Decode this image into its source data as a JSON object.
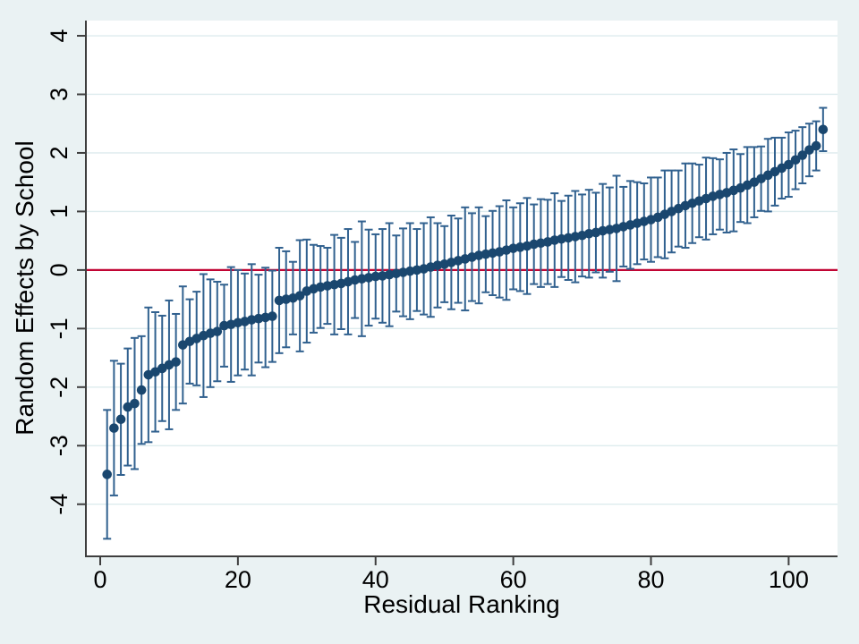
{
  "colors": {
    "background": "#eaf2f3",
    "plot_background": "#ffffff",
    "gridline": "#ddebee",
    "axis": "#3e3e3e",
    "tick_text": "#000000",
    "marker": "#1a476f",
    "error_bar": "#31618f",
    "zero_line": "#c10534"
  },
  "chart_data": {
    "type": "scatter",
    "subtype": "caterpillar-plot-with-error-bars",
    "title": "",
    "xlabel": "Residual Ranking",
    "ylabel": "Random Effects by School",
    "x_ticks": [
      0,
      20,
      40,
      60,
      80,
      100
    ],
    "y_ticks": [
      -4,
      -3,
      -2,
      -1,
      0,
      1,
      2,
      3,
      4
    ],
    "xlim": [
      -2.08,
      107.1
    ],
    "ylim": [
      -4.89,
      4.26
    ],
    "grid": "horizontal",
    "legend": "none",
    "ref_line_y": 0,
    "n_points": 105,
    "point_format": [
      "rank",
      "estimate",
      "ci_halfwidth"
    ],
    "points": [
      [
        1,
        -3.49,
        1.1
      ],
      [
        2,
        -2.7,
        1.15
      ],
      [
        3,
        -2.55,
        0.95
      ],
      [
        4,
        -2.34,
        1.0
      ],
      [
        5,
        -2.28,
        1.12
      ],
      [
        6,
        -2.05,
        0.92
      ],
      [
        7,
        -1.79,
        1.15
      ],
      [
        8,
        -1.74,
        1.02
      ],
      [
        9,
        -1.68,
        0.9
      ],
      [
        10,
        -1.62,
        1.1
      ],
      [
        11,
        -1.57,
        0.82
      ],
      [
        12,
        -1.28,
        1.0
      ],
      [
        13,
        -1.22,
        0.72
      ],
      [
        14,
        -1.17,
        0.8
      ],
      [
        15,
        -1.12,
        1.05
      ],
      [
        16,
        -1.08,
        0.92
      ],
      [
        17,
        -1.05,
        0.85
      ],
      [
        18,
        -0.95,
        0.7
      ],
      [
        19,
        -0.93,
        0.98
      ],
      [
        20,
        -0.9,
        0.9
      ],
      [
        21,
        -0.88,
        0.82
      ],
      [
        22,
        -0.85,
        0.95
      ],
      [
        23,
        -0.83,
        0.75
      ],
      [
        24,
        -0.81,
        0.85
      ],
      [
        25,
        -0.79,
        0.78
      ],
      [
        26,
        -0.52,
        0.9
      ],
      [
        27,
        -0.5,
        0.82
      ],
      [
        28,
        -0.48,
        0.62
      ],
      [
        29,
        -0.44,
        0.95
      ],
      [
        30,
        -0.36,
        0.88
      ],
      [
        31,
        -0.32,
        0.75
      ],
      [
        32,
        -0.29,
        0.7
      ],
      [
        33,
        -0.27,
        0.65
      ],
      [
        34,
        -0.25,
        0.85
      ],
      [
        35,
        -0.23,
        0.78
      ],
      [
        36,
        -0.2,
        0.9
      ],
      [
        37,
        -0.17,
        0.65
      ],
      [
        38,
        -0.15,
        0.98
      ],
      [
        39,
        -0.13,
        0.82
      ],
      [
        40,
        -0.11,
        0.72
      ],
      [
        41,
        -0.1,
        0.8
      ],
      [
        42,
        -0.08,
        0.88
      ],
      [
        43,
        -0.06,
        0.65
      ],
      [
        44,
        -0.04,
        0.75
      ],
      [
        45,
        -0.02,
        0.82
      ],
      [
        46,
        0.0,
        0.7
      ],
      [
        47,
        0.02,
        0.78
      ],
      [
        48,
        0.05,
        0.85
      ],
      [
        49,
        0.08,
        0.72
      ],
      [
        50,
        0.1,
        0.65
      ],
      [
        51,
        0.13,
        0.8
      ],
      [
        52,
        0.16,
        0.72
      ],
      [
        53,
        0.19,
        0.88
      ],
      [
        54,
        0.22,
        0.75
      ],
      [
        55,
        0.25,
        0.82
      ],
      [
        56,
        0.27,
        0.65
      ],
      [
        57,
        0.29,
        0.72
      ],
      [
        58,
        0.31,
        0.78
      ],
      [
        59,
        0.34,
        0.85
      ],
      [
        60,
        0.37,
        0.7
      ],
      [
        61,
        0.39,
        0.75
      ],
      [
        62,
        0.41,
        0.82
      ],
      [
        63,
        0.44,
        0.68
      ],
      [
        64,
        0.46,
        0.75
      ],
      [
        65,
        0.48,
        0.72
      ],
      [
        66,
        0.51,
        0.8
      ],
      [
        67,
        0.53,
        0.65
      ],
      [
        68,
        0.55,
        0.72
      ],
      [
        69,
        0.57,
        0.78
      ],
      [
        70,
        0.59,
        0.7
      ],
      [
        71,
        0.62,
        0.75
      ],
      [
        72,
        0.64,
        0.68
      ],
      [
        73,
        0.67,
        0.8
      ],
      [
        74,
        0.69,
        0.72
      ],
      [
        75,
        0.71,
        0.9
      ],
      [
        76,
        0.74,
        0.68
      ],
      [
        77,
        0.77,
        0.75
      ],
      [
        78,
        0.8,
        0.7
      ],
      [
        79,
        0.83,
        0.65
      ],
      [
        80,
        0.86,
        0.72
      ],
      [
        81,
        0.9,
        0.68
      ],
      [
        82,
        0.95,
        0.75
      ],
      [
        83,
        1.0,
        0.7
      ],
      [
        84,
        1.05,
        0.65
      ],
      [
        85,
        1.1,
        0.72
      ],
      [
        86,
        1.14,
        0.68
      ],
      [
        87,
        1.18,
        0.62
      ],
      [
        88,
        1.22,
        0.7
      ],
      [
        89,
        1.26,
        0.65
      ],
      [
        90,
        1.29,
        0.6
      ],
      [
        91,
        1.32,
        0.68
      ],
      [
        92,
        1.36,
        0.7
      ],
      [
        93,
        1.4,
        0.58
      ],
      [
        94,
        1.45,
        0.65
      ],
      [
        95,
        1.5,
        0.6
      ],
      [
        96,
        1.56,
        0.55
      ],
      [
        97,
        1.62,
        0.62
      ],
      [
        98,
        1.68,
        0.58
      ],
      [
        99,
        1.74,
        0.52
      ],
      [
        100,
        1.8,
        0.55
      ],
      [
        101,
        1.88,
        0.5
      ],
      [
        102,
        1.96,
        0.48
      ],
      [
        103,
        2.05,
        0.45
      ],
      [
        104,
        2.12,
        0.42
      ],
      [
        105,
        2.4,
        0.37
      ]
    ]
  }
}
